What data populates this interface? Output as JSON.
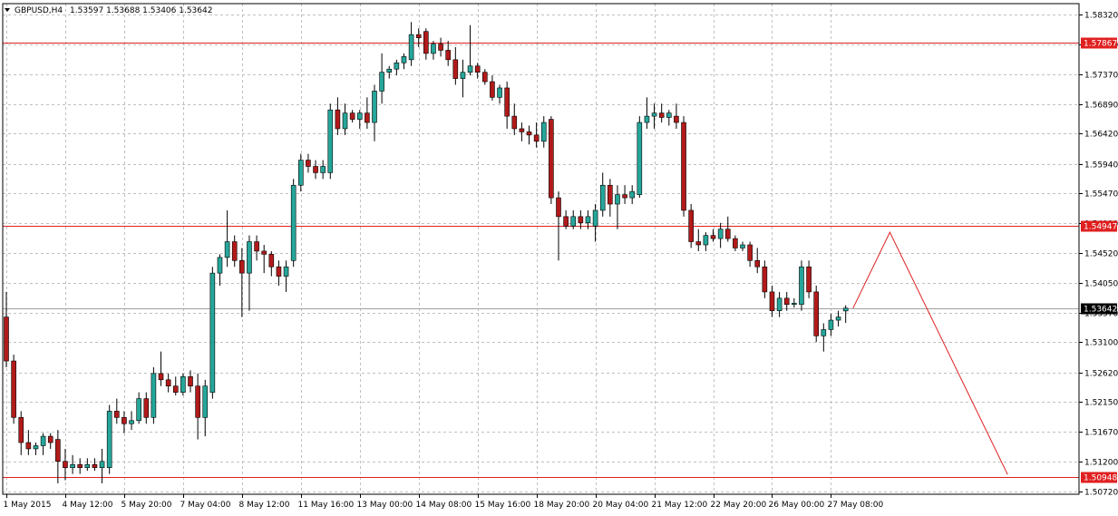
{
  "header": {
    "symbol_label": "GBPUSD,H4",
    "ohlc_text": "1.53597 1.53688 1.53406 1.53642",
    "menu_icon": "triangle-down-icon"
  },
  "colors": {
    "bull": "#26a69a",
    "bear": "#b21a1a",
    "wick": "#000000",
    "grid": "#c0c0c0",
    "level": "#e02020",
    "bid_line": "#a0a0a0",
    "projection": "#e02020",
    "label_bg": "#e02020",
    "label_text": "#ffffff"
  },
  "chart_data": {
    "type": "candlestick",
    "symbol": "GBPUSD",
    "timeframe": "H4",
    "ylim": [
      1.5072,
      1.5832
    ],
    "y_ticks": [
      1.5832,
      1.5785,
      1.5737,
      1.5689,
      1.5642,
      1.5594,
      1.5547,
      1.5499,
      1.5452,
      1.5405,
      1.5357,
      1.531,
      1.5262,
      1.5215,
      1.5167,
      1.512,
      1.5072
    ],
    "x_ticks": [
      {
        "bar": 0,
        "label": "1 May 2015"
      },
      {
        "bar": 8,
        "label": "4 May 12:00"
      },
      {
        "bar": 16,
        "label": "5 May 20:00"
      },
      {
        "bar": 24,
        "label": "7 May 04:00"
      },
      {
        "bar": 32,
        "label": "8 May 12:00"
      },
      {
        "bar": 40,
        "label": "11 May 16:00"
      },
      {
        "bar": 48,
        "label": "13 May 00:00"
      },
      {
        "bar": 56,
        "label": "14 May 08:00"
      },
      {
        "bar": 64,
        "label": "15 May 16:00"
      },
      {
        "bar": 72,
        "label": "18 May 20:00"
      },
      {
        "bar": 80,
        "label": "20 May 04:00"
      },
      {
        "bar": 88,
        "label": "21 May 12:00"
      },
      {
        "bar": 96,
        "label": "22 May 20:00"
      },
      {
        "bar": 104,
        "label": "26 May 00:00"
      },
      {
        "bar": 112,
        "label": "27 May 08:00"
      }
    ],
    "candles": [
      {
        "o": 1.535,
        "h": 1.539,
        "l": 1.527,
        "c": 1.528
      },
      {
        "o": 1.528,
        "h": 1.529,
        "l": 1.518,
        "c": 1.519
      },
      {
        "o": 1.519,
        "h": 1.52,
        "l": 1.513,
        "c": 1.515
      },
      {
        "o": 1.515,
        "h": 1.517,
        "l": 1.513,
        "c": 1.514
      },
      {
        "o": 1.514,
        "h": 1.515,
        "l": 1.513,
        "c": 1.5145
      },
      {
        "o": 1.5145,
        "h": 1.5165,
        "l": 1.513,
        "c": 1.516
      },
      {
        "o": 1.516,
        "h": 1.5165,
        "l": 1.514,
        "c": 1.515
      },
      {
        "o": 1.5155,
        "h": 1.517,
        "l": 1.5085,
        "c": 1.512
      },
      {
        "o": 1.512,
        "h": 1.514,
        "l": 1.509,
        "c": 1.511
      },
      {
        "o": 1.511,
        "h": 1.513,
        "l": 1.51,
        "c": 1.5115
      },
      {
        "o": 1.5115,
        "h": 1.5125,
        "l": 1.51,
        "c": 1.511
      },
      {
        "o": 1.511,
        "h": 1.5125,
        "l": 1.5105,
        "c": 1.5115
      },
      {
        "o": 1.5115,
        "h": 1.5125,
        "l": 1.5105,
        "c": 1.511
      },
      {
        "o": 1.511,
        "h": 1.514,
        "l": 1.5085,
        "c": 1.512
      },
      {
        "o": 1.511,
        "h": 1.521,
        "l": 1.51,
        "c": 1.52
      },
      {
        "o": 1.52,
        "h": 1.522,
        "l": 1.518,
        "c": 1.519
      },
      {
        "o": 1.519,
        "h": 1.52,
        "l": 1.5165,
        "c": 1.518
      },
      {
        "o": 1.518,
        "h": 1.52,
        "l": 1.517,
        "c": 1.5185
      },
      {
        "o": 1.5185,
        "h": 1.523,
        "l": 1.518,
        "c": 1.522
      },
      {
        "o": 1.522,
        "h": 1.523,
        "l": 1.518,
        "c": 1.519
      },
      {
        "o": 1.519,
        "h": 1.527,
        "l": 1.518,
        "c": 1.526
      },
      {
        "o": 1.526,
        "h": 1.5295,
        "l": 1.524,
        "c": 1.525
      },
      {
        "o": 1.525,
        "h": 1.526,
        "l": 1.523,
        "c": 1.524
      },
      {
        "o": 1.524,
        "h": 1.5255,
        "l": 1.5225,
        "c": 1.523
      },
      {
        "o": 1.523,
        "h": 1.526,
        "l": 1.5225,
        "c": 1.5255
      },
      {
        "o": 1.5255,
        "h": 1.5265,
        "l": 1.523,
        "c": 1.524
      },
      {
        "o": 1.524,
        "h": 1.526,
        "l": 1.5155,
        "c": 1.519
      },
      {
        "o": 1.519,
        "h": 1.525,
        "l": 1.516,
        "c": 1.524
      },
      {
        "o": 1.523,
        "h": 1.543,
        "l": 1.522,
        "c": 1.542
      },
      {
        "o": 1.542,
        "h": 1.545,
        "l": 1.54,
        "c": 1.5445
      },
      {
        "o": 1.5445,
        "h": 1.552,
        "l": 1.543,
        "c": 1.547
      },
      {
        "o": 1.547,
        "h": 1.548,
        "l": 1.543,
        "c": 1.544
      },
      {
        "o": 1.544,
        "h": 1.546,
        "l": 1.535,
        "c": 1.542
      },
      {
        "o": 1.542,
        "h": 1.548,
        "l": 1.536,
        "c": 1.547
      },
      {
        "o": 1.547,
        "h": 1.548,
        "l": 1.544,
        "c": 1.5455
      },
      {
        "o": 1.5455,
        "h": 1.5465,
        "l": 1.542,
        "c": 1.545
      },
      {
        "o": 1.545,
        "h": 1.5455,
        "l": 1.5415,
        "c": 1.543
      },
      {
        "o": 1.543,
        "h": 1.544,
        "l": 1.54,
        "c": 1.5415
      },
      {
        "o": 1.5415,
        "h": 1.544,
        "l": 1.539,
        "c": 1.543
      },
      {
        "o": 1.544,
        "h": 1.557,
        "l": 1.543,
        "c": 1.556
      },
      {
        "o": 1.556,
        "h": 1.561,
        "l": 1.555,
        "c": 1.56
      },
      {
        "o": 1.56,
        "h": 1.561,
        "l": 1.558,
        "c": 1.559
      },
      {
        "o": 1.559,
        "h": 1.56,
        "l": 1.557,
        "c": 1.558
      },
      {
        "o": 1.558,
        "h": 1.56,
        "l": 1.557,
        "c": 1.559
      },
      {
        "o": 1.558,
        "h": 1.569,
        "l": 1.557,
        "c": 1.568
      },
      {
        "o": 1.568,
        "h": 1.57,
        "l": 1.564,
        "c": 1.565
      },
      {
        "o": 1.565,
        "h": 1.569,
        "l": 1.564,
        "c": 1.5675
      },
      {
        "o": 1.5675,
        "h": 1.568,
        "l": 1.566,
        "c": 1.5665
      },
      {
        "o": 1.5665,
        "h": 1.568,
        "l": 1.565,
        "c": 1.5675
      },
      {
        "o": 1.5675,
        "h": 1.57,
        "l": 1.565,
        "c": 1.566
      },
      {
        "o": 1.566,
        "h": 1.572,
        "l": 1.563,
        "c": 1.571
      },
      {
        "o": 1.571,
        "h": 1.577,
        "l": 1.569,
        "c": 1.574
      },
      {
        "o": 1.574,
        "h": 1.575,
        "l": 1.573,
        "c": 1.5745
      },
      {
        "o": 1.5745,
        "h": 1.576,
        "l": 1.5735,
        "c": 1.5755
      },
      {
        "o": 1.5755,
        "h": 1.577,
        "l": 1.5745,
        "c": 1.5765
      },
      {
        "o": 1.576,
        "h": 1.582,
        "l": 1.575,
        "c": 1.58
      },
      {
        "o": 1.58,
        "h": 1.581,
        "l": 1.578,
        "c": 1.5795
      },
      {
        "o": 1.5805,
        "h": 1.581,
        "l": 1.576,
        "c": 1.577
      },
      {
        "o": 1.577,
        "h": 1.579,
        "l": 1.576,
        "c": 1.5785
      },
      {
        "o": 1.5785,
        "h": 1.5795,
        "l": 1.5765,
        "c": 1.5775
      },
      {
        "o": 1.5775,
        "h": 1.579,
        "l": 1.575,
        "c": 1.576
      },
      {
        "o": 1.576,
        "h": 1.578,
        "l": 1.572,
        "c": 1.573
      },
      {
        "o": 1.573,
        "h": 1.576,
        "l": 1.57,
        "c": 1.574
      },
      {
        "o": 1.574,
        "h": 1.5815,
        "l": 1.5735,
        "c": 1.575
      },
      {
        "o": 1.575,
        "h": 1.5755,
        "l": 1.573,
        "c": 1.574
      },
      {
        "o": 1.574,
        "h": 1.5745,
        "l": 1.572,
        "c": 1.5725
      },
      {
        "o": 1.5725,
        "h": 1.5735,
        "l": 1.5695,
        "c": 1.57
      },
      {
        "o": 1.57,
        "h": 1.572,
        "l": 1.569,
        "c": 1.5715
      },
      {
        "o": 1.5715,
        "h": 1.5725,
        "l": 1.565,
        "c": 1.567
      },
      {
        "o": 1.567,
        "h": 1.569,
        "l": 1.564,
        "c": 1.565
      },
      {
        "o": 1.565,
        "h": 1.566,
        "l": 1.563,
        "c": 1.5645
      },
      {
        "o": 1.5645,
        "h": 1.5655,
        "l": 1.5625,
        "c": 1.564
      },
      {
        "o": 1.564,
        "h": 1.566,
        "l": 1.562,
        "c": 1.563
      },
      {
        "o": 1.563,
        "h": 1.567,
        "l": 1.562,
        "c": 1.566
      },
      {
        "o": 1.5665,
        "h": 1.567,
        "l": 1.553,
        "c": 1.554
      },
      {
        "o": 1.554,
        "h": 1.555,
        "l": 1.544,
        "c": 1.551
      },
      {
        "o": 1.551,
        "h": 1.552,
        "l": 1.549,
        "c": 1.5495
      },
      {
        "o": 1.5495,
        "h": 1.552,
        "l": 1.549,
        "c": 1.551
      },
      {
        "o": 1.551,
        "h": 1.552,
        "l": 1.549,
        "c": 1.55
      },
      {
        "o": 1.55,
        "h": 1.552,
        "l": 1.549,
        "c": 1.551
      },
      {
        "o": 1.5495,
        "h": 1.553,
        "l": 1.547,
        "c": 1.552
      },
      {
        "o": 1.552,
        "h": 1.558,
        "l": 1.551,
        "c": 1.556
      },
      {
        "o": 1.556,
        "h": 1.557,
        "l": 1.551,
        "c": 1.553
      },
      {
        "o": 1.553,
        "h": 1.556,
        "l": 1.549,
        "c": 1.5545
      },
      {
        "o": 1.5545,
        "h": 1.556,
        "l": 1.553,
        "c": 1.554
      },
      {
        "o": 1.554,
        "h": 1.556,
        "l": 1.553,
        "c": 1.555
      },
      {
        "o": 1.5545,
        "h": 1.567,
        "l": 1.554,
        "c": 1.566
      },
      {
        "o": 1.566,
        "h": 1.57,
        "l": 1.565,
        "c": 1.567
      },
      {
        "o": 1.567,
        "h": 1.569,
        "l": 1.565,
        "c": 1.5675
      },
      {
        "o": 1.5675,
        "h": 1.569,
        "l": 1.566,
        "c": 1.5668
      },
      {
        "o": 1.5668,
        "h": 1.568,
        "l": 1.5655,
        "c": 1.5675
      },
      {
        "o": 1.567,
        "h": 1.569,
        "l": 1.565,
        "c": 1.566
      },
      {
        "o": 1.566,
        "h": 1.567,
        "l": 1.551,
        "c": 1.552
      },
      {
        "o": 1.552,
        "h": 1.553,
        "l": 1.546,
        "c": 1.547
      },
      {
        "o": 1.547,
        "h": 1.549,
        "l": 1.5455,
        "c": 1.5465
      },
      {
        "o": 1.5465,
        "h": 1.5485,
        "l": 1.5455,
        "c": 1.548
      },
      {
        "o": 1.548,
        "h": 1.549,
        "l": 1.547,
        "c": 1.5475
      },
      {
        "o": 1.5475,
        "h": 1.55,
        "l": 1.546,
        "c": 1.549
      },
      {
        "o": 1.549,
        "h": 1.551,
        "l": 1.547,
        "c": 1.5475
      },
      {
        "o": 1.5475,
        "h": 1.548,
        "l": 1.5455,
        "c": 1.546
      },
      {
        "o": 1.546,
        "h": 1.547,
        "l": 1.5455,
        "c": 1.5465
      },
      {
        "o": 1.5465,
        "h": 1.547,
        "l": 1.543,
        "c": 1.544
      },
      {
        "o": 1.544,
        "h": 1.546,
        "l": 1.542,
        "c": 1.543
      },
      {
        "o": 1.543,
        "h": 1.544,
        "l": 1.538,
        "c": 1.539
      },
      {
        "o": 1.539,
        "h": 1.54,
        "l": 1.535,
        "c": 1.536
      },
      {
        "o": 1.536,
        "h": 1.539,
        "l": 1.535,
        "c": 1.538
      },
      {
        "o": 1.538,
        "h": 1.539,
        "l": 1.536,
        "c": 1.537
      },
      {
        "o": 1.537,
        "h": 1.538,
        "l": 1.5365,
        "c": 1.5372
      },
      {
        "o": 1.537,
        "h": 1.544,
        "l": 1.536,
        "c": 1.543
      },
      {
        "o": 1.543,
        "h": 1.544,
        "l": 1.538,
        "c": 1.539
      },
      {
        "o": 1.539,
        "h": 1.54,
        "l": 1.531,
        "c": 1.532
      },
      {
        "o": 1.532,
        "h": 1.534,
        "l": 1.5295,
        "c": 1.533
      },
      {
        "o": 1.533,
        "h": 1.5355,
        "l": 1.532,
        "c": 1.5345
      },
      {
        "o": 1.5345,
        "h": 1.536,
        "l": 1.5335,
        "c": 1.535
      },
      {
        "o": 1.53597,
        "h": 1.53688,
        "l": 1.53406,
        "c": 1.53642
      }
    ],
    "levels": [
      {
        "value": 1.57867,
        "label": "1.57867"
      },
      {
        "value": 1.54947,
        "label": "1.54947"
      },
      {
        "value": 1.50948,
        "label": "1.50948"
      }
    ],
    "bid": {
      "value": 1.53642,
      "label": "1.53642"
    },
    "projection": [
      {
        "bar": 115,
        "price": 1.53642
      },
      {
        "bar": 120,
        "price": 1.5485
      },
      {
        "bar": 136,
        "price": 1.5099
      }
    ]
  }
}
